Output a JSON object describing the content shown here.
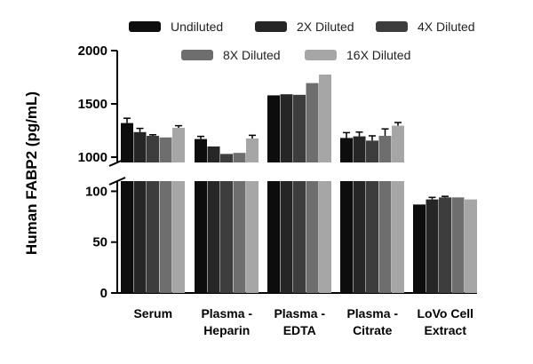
{
  "chart_data": {
    "type": "bar",
    "title": "",
    "xlabel": "",
    "ylabel": "Human FABP2 (pg/mL)",
    "axis_break": {
      "lower_range": [
        0,
        110
      ],
      "upper_range": [
        950,
        2000
      ],
      "lower_ticks": [
        "0",
        "50",
        "100"
      ],
      "upper_ticks": [
        "1000",
        "1500",
        "2000"
      ]
    },
    "categories": [
      [
        "Serum"
      ],
      [
        "Plasma -",
        "Heparin"
      ],
      [
        "Plasma -",
        "EDTA"
      ],
      [
        "Plasma -",
        "Citrate"
      ],
      [
        "LoVo Cell",
        "Extract"
      ]
    ],
    "series": [
      {
        "name": "Undiluted",
        "color": "#0d0d0d",
        "values": [
          1320,
          1170,
          1580,
          1180,
          87
        ],
        "errors": [
          45,
          25,
          0,
          50,
          0
        ]
      },
      {
        "name": "2X Diluted",
        "color": "#262626",
        "values": [
          1235,
          1100,
          1590,
          1195,
          92
        ],
        "errors": [
          35,
          0,
          0,
          40,
          2
        ]
      },
      {
        "name": "4X Diluted",
        "color": "#3d3d3d",
        "values": [
          1200,
          1030,
          1585,
          1155,
          94
        ],
        "errors": [
          10,
          0,
          0,
          45,
          1
        ]
      },
      {
        "name": "8X Diluted",
        "color": "#6e6e6e",
        "values": [
          1185,
          1040,
          1695,
          1200,
          94
        ],
        "errors": [
          0,
          0,
          0,
          65,
          0
        ]
      },
      {
        "name": "16X Diluted",
        "color": "#a6a6a6",
        "values": [
          1275,
          1175,
          1775,
          1295,
          92
        ],
        "errors": [
          20,
          30,
          0,
          30,
          0
        ]
      }
    ],
    "legend": [
      [
        "Undiluted",
        "2X Diluted",
        "4X Diluted"
      ],
      [
        "8X Diluted",
        "16X Diluted"
      ]
    ],
    "legend_position": "top"
  }
}
